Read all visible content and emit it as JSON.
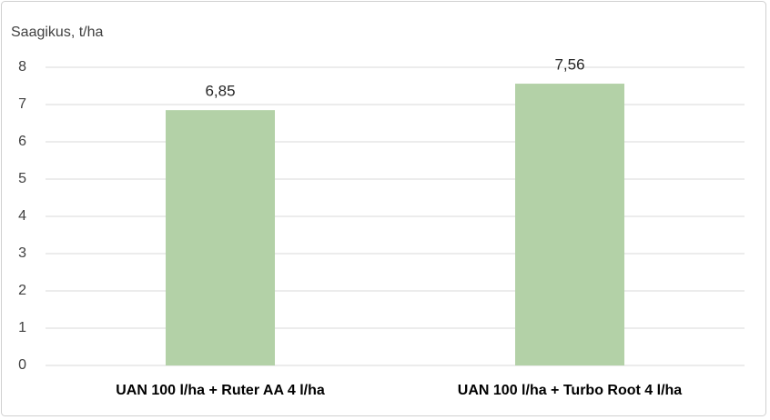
{
  "chart_data": {
    "type": "bar",
    "y_label": "Saagikus, t/ha",
    "categories": [
      "UAN 100 l/ha + Ruter AA 4 l/ha",
      "UAN 100 l/ha + Turbo Root 4 l/ha"
    ],
    "values": [
      6.85,
      7.56
    ],
    "value_labels": [
      "6,85",
      "7,56"
    ],
    "color": "#b3d1a7",
    "ylim": [
      0,
      8
    ],
    "yticks": [
      0,
      1,
      2,
      3,
      4,
      5,
      6,
      7,
      8
    ],
    "grid": true
  }
}
